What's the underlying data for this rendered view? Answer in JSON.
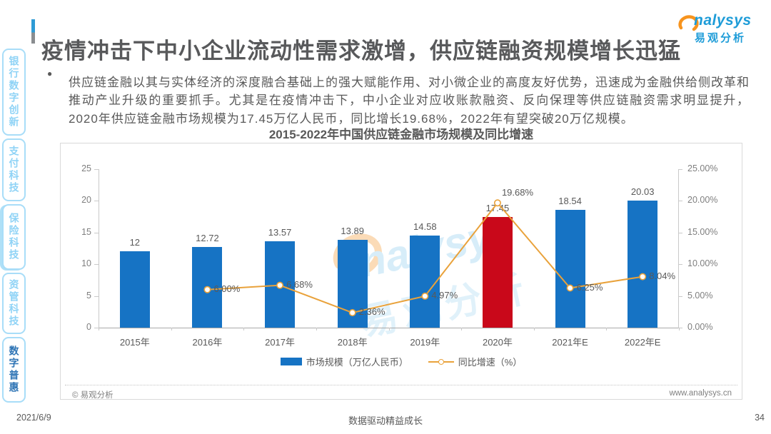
{
  "header": {
    "title": "疫情冲击下中小企业流动性需求激增，供应链融资规模增长迅猛",
    "logo": {
      "brand_en": "nalysys",
      "brand_cn": "易观分析"
    }
  },
  "sidebar": {
    "items": [
      {
        "label": "银行数字创新",
        "active": false
      },
      {
        "label": "支付科技",
        "active": false
      },
      {
        "label": "保险科技",
        "active": false
      },
      {
        "label": "资管科技",
        "active": false
      },
      {
        "label": "数字普惠",
        "active": true
      }
    ]
  },
  "summary": {
    "bullet": "●",
    "text": "供应链金融以其与实体经济的深度融合基础上的强大赋能作用、对小微企业的高度友好优势，迅速成为金融供给侧改革和推动产业升级的重要抓手。尤其是在疫情冲击下，中小企业对应收账款融资、反向保理等供应链融资需求明显提升，2020年供应链金融市场规模为17.45万亿人民币，同比增长19.68%，2022年有望突破20万亿规模。"
  },
  "chart_data": {
    "type": "bar",
    "title": "2015-2022年中国供应链金融市场规模及同比增速",
    "categories": [
      "2015年",
      "2016年",
      "2017年",
      "2018年",
      "2019年",
      "2020年",
      "2021年E",
      "2022年E"
    ],
    "series": [
      {
        "name": "市场规模（万亿人民币）",
        "kind": "bar",
        "values": [
          12,
          12.72,
          13.57,
          13.89,
          14.58,
          17.45,
          18.54,
          20.03
        ],
        "labels": [
          "12",
          "12.72",
          "13.57",
          "13.89",
          "14.58",
          "17.45",
          "18.54",
          "20.03"
        ],
        "color": "#1673C4",
        "highlight_color": "#C9081A",
        "highlight_index": 5
      },
      {
        "name": "同比增速（%）",
        "kind": "line",
        "values": [
          null,
          6.0,
          6.68,
          2.36,
          4.97,
          19.68,
          6.25,
          8.04
        ],
        "labels": [
          null,
          "6.00%",
          "6.68%",
          "2.36%",
          "4.97%",
          "19.68%",
          "6.25%",
          "8.04%"
        ],
        "color": "#E9A23B"
      }
    ],
    "left_axis": {
      "min": 0,
      "max": 25,
      "tick_values": [
        0,
        5,
        10,
        15,
        20,
        25
      ],
      "tick_labels": [
        "0",
        "5",
        "10",
        "15",
        "20",
        "25"
      ]
    },
    "right_axis": {
      "min": 0,
      "max": 25,
      "tick_values": [
        0,
        5,
        10,
        15,
        20,
        25
      ],
      "tick_labels": [
        "0.00%",
        "5.00%",
        "10.00%",
        "15.00%",
        "20.00%",
        "25.00%"
      ]
    },
    "legend_position": "bottom",
    "grid": false
  },
  "chart_footer": {
    "copyright": "© 易观分析",
    "website": "www.analysys.cn"
  },
  "footer": {
    "date": "2021/6/9",
    "slogan": "数据驱动精益成长",
    "page_number": "34"
  },
  "colors": {
    "bar_blue": "#1673C4",
    "bar_red": "#C9081A",
    "line_orange": "#E9A23B",
    "sidebar_blue": "#8FD3F6",
    "active_tab_blue": "#2E74B5",
    "logo_blue": "#1E9CD8",
    "logo_orange": "#F7941E",
    "title_gray": "#58595B"
  }
}
